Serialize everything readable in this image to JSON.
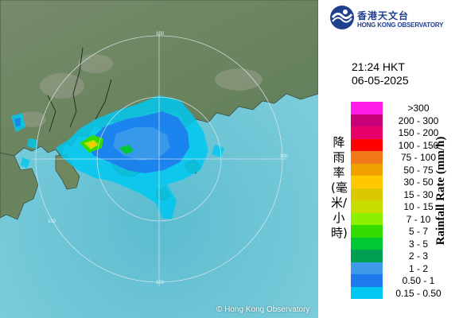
{
  "header": {
    "org_chinese": "香港天文台",
    "org_english": "HONG KONG OBSERVATORY"
  },
  "timestamp": {
    "time": "21:24 HKT",
    "date": "06-05-2025"
  },
  "map": {
    "copyright": "© Hong Kong Observatory",
    "range_ring_labels": [
      "100",
      "100",
      "100",
      "100"
    ]
  },
  "legend": {
    "title_chinese": "降雨率(毫米/小時)",
    "title_english": "Rainfall Rate (mm/h)",
    "entries": [
      {
        "label": ">300",
        "color": "#ff1ee8"
      },
      {
        "label": "200 - 300",
        "color": "#c8007a"
      },
      {
        "label": "150 - 200",
        "color": "#e8006a"
      },
      {
        "label": "100 - 150",
        "color": "#ff0000"
      },
      {
        "label": "75 - 100",
        "color": "#f07818"
      },
      {
        "label": "50 - 75",
        "color": "#f0a000"
      },
      {
        "label": "30 - 50",
        "color": "#ffc800"
      },
      {
        "label": "15 - 30",
        "color": "#dcc800"
      },
      {
        "label": "10 - 15",
        "color": "#c8dc00"
      },
      {
        "label": "7 - 10",
        "color": "#8cf000"
      },
      {
        "label": "5 - 7",
        "color": "#32dc00"
      },
      {
        "label": "3 - 5",
        "color": "#00c832"
      },
      {
        "label": "2 - 3",
        "color": "#00a050"
      },
      {
        "label": "1 - 2",
        "color": "#3c9ae8"
      },
      {
        "label": "0.50 - 1",
        "color": "#1f78ee"
      },
      {
        "label": "0.15 - 0.50",
        "color": "#00c8f0"
      }
    ]
  }
}
